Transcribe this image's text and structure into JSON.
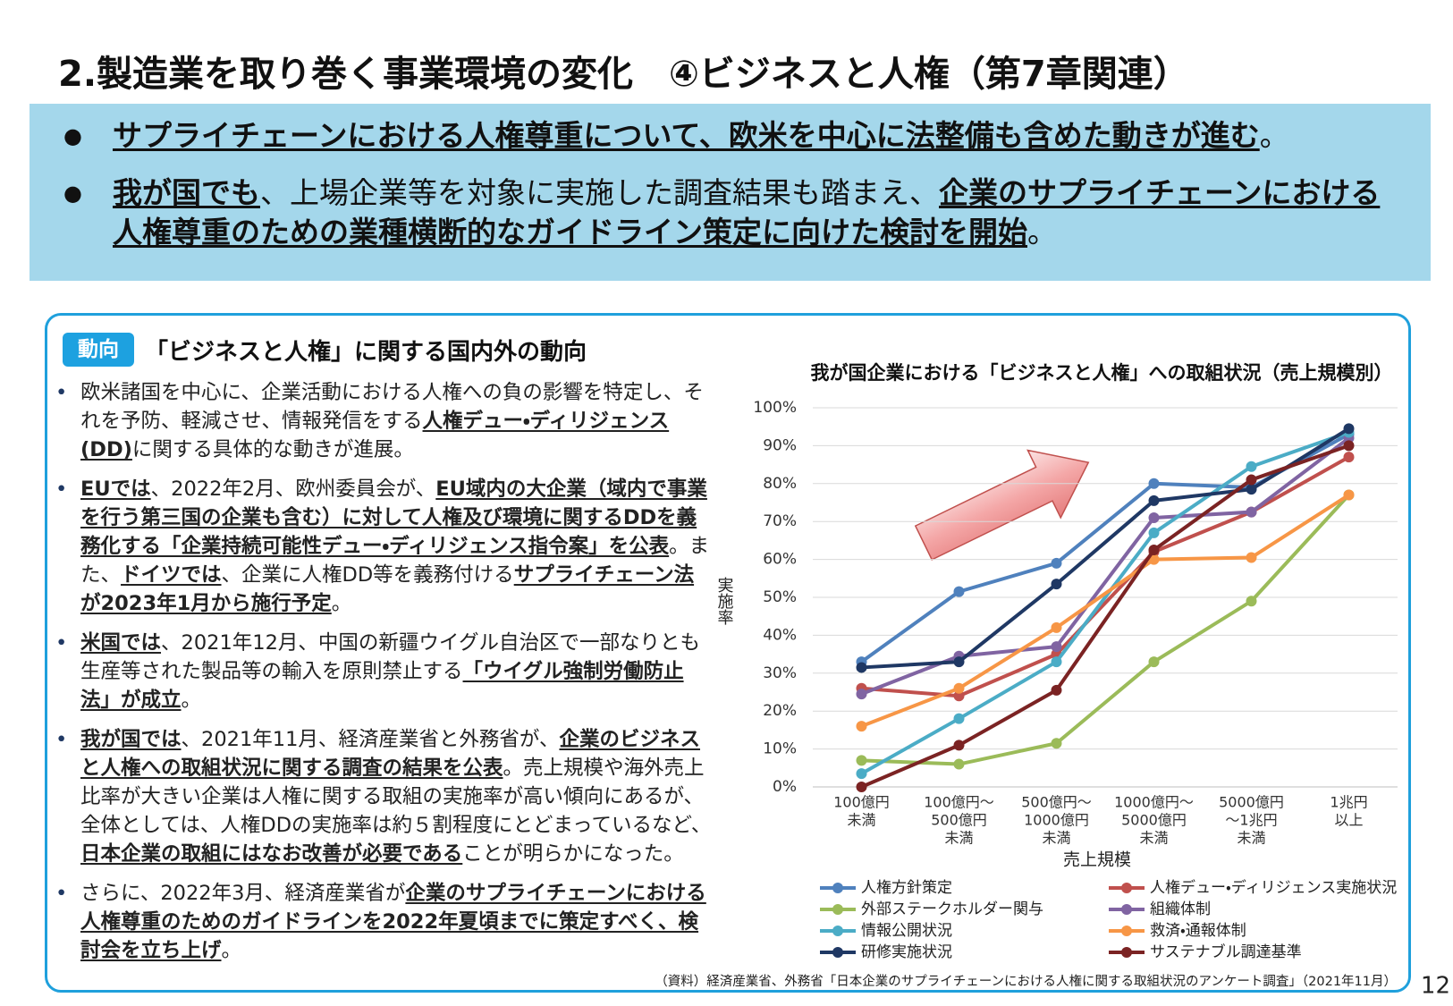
{
  "header": {
    "title": "2.製造業を取り巻く事業環境の変化　④ビジネスと人権（第7章関連）"
  },
  "banner": {
    "bullets": [
      [
        {
          "text": "サプライチェーンにおける人権尊重について、欧米を中心に法整備も含めた動きが進む",
          "emphasis": true
        },
        {
          "text": "。"
        }
      ],
      [
        {
          "text": "我が国でも",
          "emphasis": true
        },
        {
          "text": "、上場企業等を対象に実施した調査結果も踏まえ、"
        },
        {
          "text": "企業のサプライチェーンにおける人権尊重のための業種横断的なガイドライン策定に向けた検討を開始",
          "emphasis": true
        },
        {
          "text": "。"
        }
      ]
    ]
  },
  "section": {
    "tag": "動向",
    "heading": "「ビジネスと人権」に関する国内外の動向",
    "bullets": [
      [
        {
          "text": "欧米諸国を中心に、企業活動における人権への負の影響を特定し、それを予防、軽減させ、情報発信をする"
        },
        {
          "text": "人権デュー・ディリジェンス(DD)",
          "emphasis": true
        },
        {
          "text": "に関する具体的な動きが進展。"
        }
      ],
      [
        {
          "text": "EUでは",
          "emphasis": true
        },
        {
          "text": "、2022年2月、欧州委員会が、"
        },
        {
          "text": "EU域内の大企業（域内で事業を行う第三国の企業も含む）に対して人権及び環境に関するDDを義務化する「企業持続可能性デュー・ディリジェンス指令案」を公表",
          "emphasis": true
        },
        {
          "text": "。また、"
        },
        {
          "text": "ドイツでは",
          "emphasis": true
        },
        {
          "text": "、企業に人権DD等を義務付ける"
        },
        {
          "text": "サプライチェーン法が2023年1月から施行予定",
          "emphasis": true
        },
        {
          "text": "。"
        }
      ],
      [
        {
          "text": "米国では",
          "emphasis": true
        },
        {
          "text": "、2021年12月、中国の新疆ウイグル自治区で一部なりとも生産等された製品等の輸入を原則禁止する"
        },
        {
          "text": "「ウイグル強制労働防止法」が成立",
          "emphasis": true
        },
        {
          "text": "。"
        }
      ],
      [
        {
          "text": "我が国では",
          "emphasis": true
        },
        {
          "text": "、2021年11月、経済産業省と外務省が、"
        },
        {
          "text": "企業のビジネスと人権への取組状況に関する調査の結果を公表",
          "emphasis": true
        },
        {
          "text": "。売上規模や海外売上比率が大きい企業は人権に関する取組の実施率が高い傾向にあるが、全体としては、人権DDの実施率は約５割程度にとどまっているなど、"
        },
        {
          "text": "日本企業の取組にはなお改善が必要である",
          "emphasis": true
        },
        {
          "text": "ことが明らかになった。"
        }
      ],
      [
        {
          "text": "さらに、2022年3月、経済産業省が"
        },
        {
          "text": "企業のサプライチェーンにおける人権尊重のためのガイドラインを2022年夏頃までに策定すべく、検討会を立ち上げ",
          "emphasis": true
        },
        {
          "text": "。"
        }
      ]
    ]
  },
  "chart_data": {
    "type": "line",
    "title": "我が国企業における「ビジネスと人権」への取組状況（売上規模別）",
    "x_label": "売上規模",
    "y_label": "実施率",
    "categories": [
      [
        "100億円",
        "未満"
      ],
      [
        "100億円～",
        "500億円",
        "未満"
      ],
      [
        "500億円～",
        "1000億円",
        "未満"
      ],
      [
        "1000億円～",
        "5000億円",
        "未満"
      ],
      [
        "5000億円",
        "～1兆円",
        "未満"
      ],
      [
        "1兆円",
        "以上"
      ]
    ],
    "ylim": [
      0,
      100
    ],
    "yticks": [
      {
        "value": 0,
        "label": "0%"
      },
      {
        "value": 10,
        "label": "10%"
      },
      {
        "value": 20,
        "label": "20%"
      },
      {
        "value": 30,
        "label": "30%"
      },
      {
        "value": 40,
        "label": "40%"
      },
      {
        "value": 50,
        "label": "50%"
      },
      {
        "value": 60,
        "label": "60%"
      },
      {
        "value": 70,
        "label": "70%"
      },
      {
        "value": 80,
        "label": "80%"
      },
      {
        "value": 90,
        "label": "90%"
      },
      {
        "value": 100,
        "label": "100%"
      }
    ],
    "grid": true,
    "series": [
      {
        "name": "人権方針策定",
        "color": "#4f81bd",
        "values": [
          33,
          51.5,
          59,
          80,
          79,
          93
        ]
      },
      {
        "name": "人権デュー・ディリジェンス実施状況",
        "color": "#c0504d",
        "values": [
          26,
          24,
          35,
          62,
          72.5,
          87
        ]
      },
      {
        "name": "外部ステークホルダー関与",
        "color": "#9bbb59",
        "values": [
          7,
          6,
          11.5,
          33,
          49,
          77
        ]
      },
      {
        "name": "組織体制",
        "color": "#8064a2",
        "values": [
          24.5,
          34.5,
          37,
          71,
          72.5,
          92
        ]
      },
      {
        "name": "情報公開状況",
        "color": "#4bacc6",
        "values": [
          3.5,
          18,
          33,
          67,
          84.5,
          93.5
        ]
      },
      {
        "name": "救済・通報体制",
        "color": "#f79646",
        "values": [
          16,
          26,
          42,
          60,
          60.5,
          77
        ]
      },
      {
        "name": "研修実施状況",
        "color": "#1f3864",
        "values": [
          31.5,
          33,
          53.5,
          75.5,
          78.5,
          94.5
        ]
      },
      {
        "name": "サステナブル調達基準",
        "color": "#7b2323",
        "values": [
          0,
          11,
          25.5,
          62.5,
          81,
          90
        ]
      }
    ]
  },
  "footer": {
    "source": "（資料）経済産業省、外務省「日本企業のサプライチェーンにおける人権に関する取組状況のアンケート調査」（2021年11月）",
    "page": "12"
  }
}
